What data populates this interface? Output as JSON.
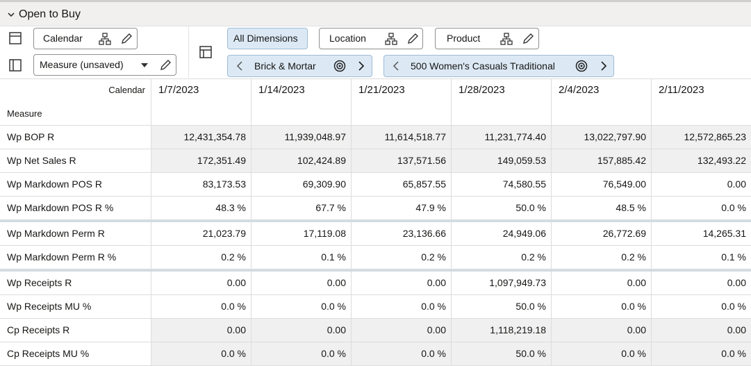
{
  "header": {
    "title": "Open to Buy"
  },
  "toolbar": {
    "calendar": "Calendar",
    "measure": "Measure (unsaved)",
    "all_dimensions": "All Dimensions",
    "location": "Location",
    "product": "Product",
    "breadcrumbs": [
      "Brick & Mortar",
      "500 Women's Casuals Traditional"
    ]
  },
  "table": {
    "corner": "Calendar",
    "row_header": "Measure",
    "columns": [
      "1/7/2023",
      "1/14/2023",
      "1/21/2023",
      "1/28/2023",
      "2/4/2023",
      "2/11/2023"
    ],
    "rows": [
      {
        "label": "Wp BOP R",
        "values": [
          "12,431,354.78",
          "11,939,048.97",
          "11,614,518.77",
          "11,231,774.40",
          "13,022,797.90",
          "12,572,865.23"
        ]
      },
      {
        "label": "Wp Net Sales R",
        "values": [
          "172,351.49",
          "102,424.89",
          "137,571.56",
          "149,059.53",
          "157,885.42",
          "132,493.22"
        ]
      },
      {
        "label": "Wp Markdown POS R",
        "values": [
          "83,173.53",
          "69,309.90",
          "65,857.55",
          "74,580.55",
          "76,549.00",
          "0.00"
        ]
      },
      {
        "label": "Wp Markdown POS R %",
        "values": [
          "48.3 %",
          "67.7 %",
          "47.9 %",
          "50.0 %",
          "48.5 %",
          "0.0 %"
        ]
      },
      {
        "label": "Wp Markdown Perm R",
        "values": [
          "21,023.79",
          "17,119.08",
          "23,136.66",
          "24,949.06",
          "26,772.69",
          "14,265.31"
        ]
      },
      {
        "label": "Wp Markdown Perm R %",
        "values": [
          "0.2 %",
          "0.1 %",
          "0.2 %",
          "0.2 %",
          "0.2 %",
          "0.1 %"
        ]
      },
      {
        "label": "Wp Receipts R",
        "values": [
          "0.00",
          "0.00",
          "0.00",
          "1,097,949.73",
          "0.00",
          "0.00"
        ]
      },
      {
        "label": "Wp Receipts MU %",
        "values": [
          "0.0 %",
          "0.0 %",
          "0.0 %",
          "50.0 %",
          "0.0 %",
          "0.0 %"
        ]
      },
      {
        "label": "Cp Receipts R",
        "values": [
          "0.00",
          "0.00",
          "0.00",
          "1,118,219.18",
          "0.00",
          "0.00"
        ]
      },
      {
        "label": "Cp Receipts MU %",
        "values": [
          "0.0 %",
          "0.0 %",
          "0.0 %",
          "50.0 %",
          "0.0 %",
          "0.0 %"
        ]
      }
    ]
  }
}
